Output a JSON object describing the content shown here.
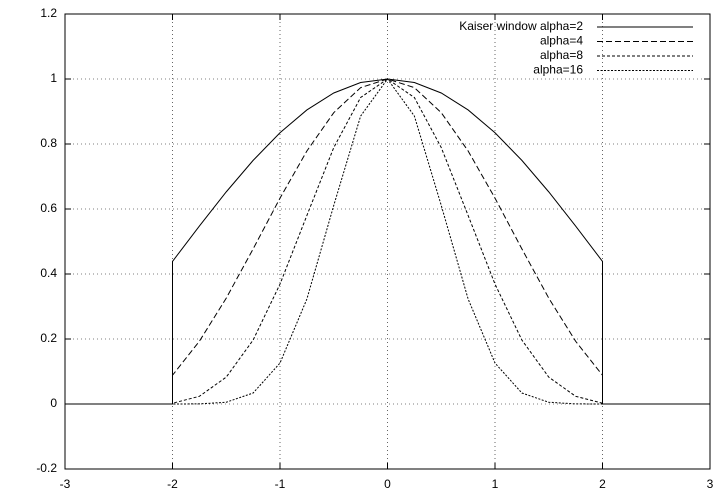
{
  "chart_data": {
    "type": "line",
    "x": [
      -3,
      -2.5,
      -2,
      -2,
      -1.75,
      -1.5,
      -1.25,
      -1,
      -0.75,
      -0.5,
      -0.25,
      0,
      0.25,
      0.5,
      0.75,
      1,
      1.25,
      1.5,
      1.75,
      2,
      2,
      2.5,
      3
    ],
    "series": [
      {
        "name": "Kaiser window alpha=2",
        "color": "#000000",
        "dash": "none",
        "values": [
          0,
          0,
          0,
          0.4387,
          0.5476,
          0.6527,
          0.7496,
          0.8347,
          0.9048,
          0.9569,
          0.9892,
          1,
          0.9892,
          0.9569,
          0.9048,
          0.8347,
          0.7496,
          0.6527,
          0.5476,
          0.4387,
          0,
          0,
          0
        ]
      },
      {
        "name": "alpha=4",
        "color": "#000000",
        "dash": "6,3",
        "values": [
          0,
          0,
          0,
          0.0885,
          0.193,
          0.3258,
          0.4772,
          0.6334,
          0.7785,
          0.8964,
          0.9734,
          1,
          0.9734,
          0.8964,
          0.7785,
          0.6334,
          0.4772,
          0.3258,
          0.193,
          0.0885,
          0,
          0,
          0
        ]
      },
      {
        "name": "alpha=8",
        "color": "#000000",
        "dash": "3,2",
        "values": [
          0,
          0,
          0,
          0.0023,
          0.0237,
          0.0827,
          0.1968,
          0.369,
          0.58,
          0.789,
          0.943,
          1,
          0.943,
          0.789,
          0.58,
          0.369,
          0.1968,
          0.0827,
          0.0237,
          0.0023,
          0,
          0,
          0
        ]
      },
      {
        "name": "alpha=16",
        "color": "#000000",
        "dash": "2,1.5",
        "values": [
          0,
          0,
          0,
          0,
          0.0003,
          0.0054,
          0.0338,
          0.126,
          0.323,
          0.611,
          0.886,
          1,
          0.886,
          0.611,
          0.323,
          0.126,
          0.0338,
          0.0054,
          0.0003,
          0,
          0,
          0,
          0
        ]
      }
    ],
    "xlim": [
      -3,
      3
    ],
    "xticks": [
      -3,
      -2,
      -1,
      0,
      1,
      2,
      3
    ],
    "ylim": [
      -0.2,
      1.2
    ],
    "yticks": [
      -0.2,
      0,
      0.2,
      0.4,
      0.6,
      0.8,
      1,
      1.2
    ],
    "grid": true,
    "legend": "top right"
  }
}
